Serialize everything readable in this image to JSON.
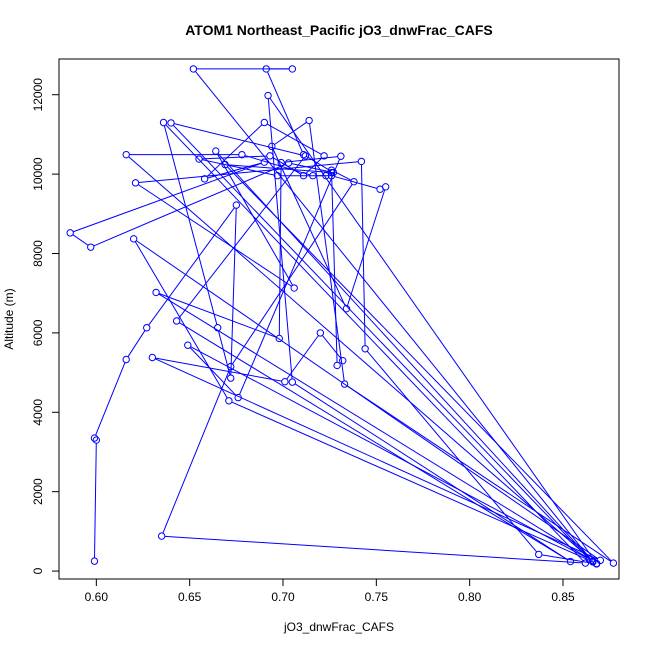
{
  "chart_data": {
    "type": "line",
    "title": "ATOM1 Northeast_Pacific jO3_dnwFrac_CAFS",
    "xlabel": "jO3_dnwFrac_CAFS",
    "ylabel": "Altitude (m)",
    "xlim": [
      0.58,
      0.88
    ],
    "ylim": [
      -200,
      12900
    ],
    "x_ticks": [
      0.6,
      0.65,
      0.7,
      0.75,
      0.8,
      0.85
    ],
    "x_tick_labels": [
      "0.60",
      "0.65",
      "0.70",
      "0.75",
      "0.80",
      "0.85"
    ],
    "y_ticks": [
      0,
      2000,
      4000,
      6000,
      8000,
      10000,
      12000
    ],
    "y_tick_labels": [
      "0",
      "2000",
      "4000",
      "6000",
      "8000",
      "10000",
      "12000"
    ],
    "color": "#0000ff",
    "marker": "open-circle",
    "series": [
      {
        "x": [
          0.599,
          0.6,
          0.599,
          0.616,
          0.627,
          0.675,
          0.672,
          0.665,
          0.636,
          0.862,
          0.635,
          0.672,
          0.738,
          0.726,
          0.729,
          0.732,
          0.72,
          0.701,
          0.63,
          0.87,
          0.62,
          0.671,
          0.868,
          0.692,
          0.705,
          0.854,
          0.643,
          0.712,
          0.64,
          0.864,
          0.649,
          0.676,
          0.731,
          0.699,
          0.698,
          0.632,
          0.866,
          0.616,
          0.678,
          0.716,
          0.726,
          0.752,
          0.755,
          0.734,
          0.694,
          0.714,
          0.733,
          0.877,
          0.669,
          0.726,
          0.723,
          0.697,
          0.655,
          0.693,
          0.711,
          0.722,
          0.69,
          0.658,
          0.69,
          0.586,
          0.597,
          0.703,
          0.727,
          0.711,
          0.691,
          0.705,
          0.652,
          0.866,
          0.664,
          0.706,
          0.621,
          0.742,
          0.744,
          0.837,
          0.868
        ],
        "y": [
          250,
          3300,
          3350,
          5330,
          6130,
          9220,
          4860,
          6130,
          11300,
          200,
          880,
          5150,
          9810,
          10100,
          5180,
          5300,
          6000,
          4770,
          5380,
          270,
          8370,
          4290,
          190,
          11980,
          4760,
          240,
          6300,
          10460,
          11290,
          300,
          5690,
          4370,
          10450,
          10290,
          5860,
          7020,
          250,
          10490,
          10490,
          9960,
          9960,
          9620,
          9680,
          6610,
          10700,
          11350,
          4710,
          200,
          10240,
          10040,
          9960,
          9960,
          10380,
          10460,
          9960,
          10460,
          11300,
          9880,
          10300,
          8520,
          8160,
          10280,
          10040,
          10490,
          12650,
          12650,
          12650,
          230,
          10580,
          7130,
          9780,
          10320,
          5600,
          420,
          180
        ]
      }
    ]
  }
}
